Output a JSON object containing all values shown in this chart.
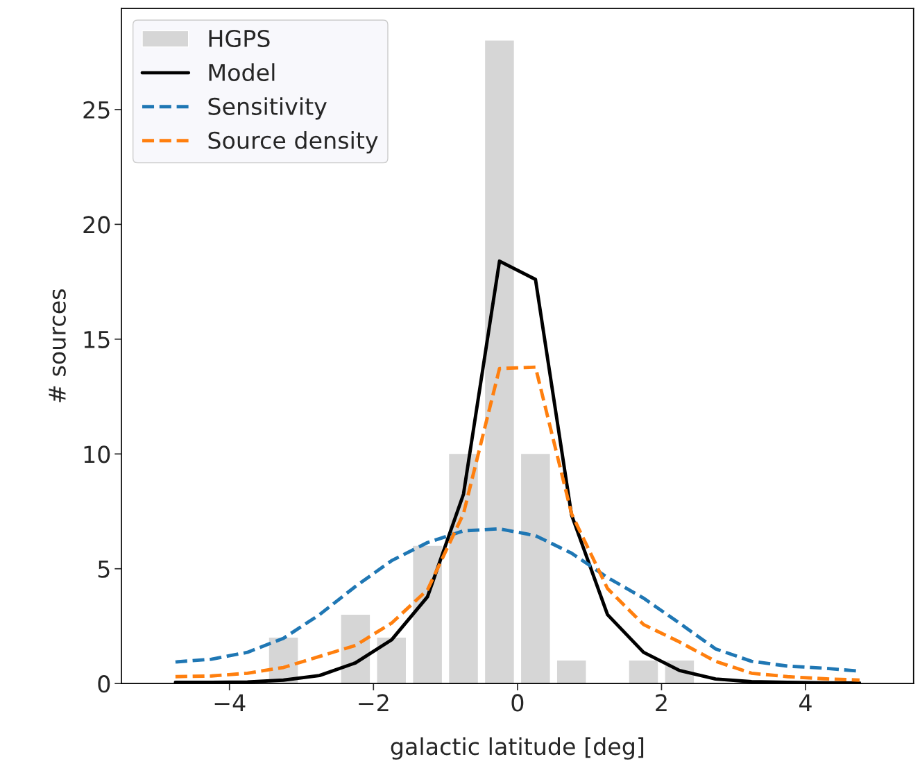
{
  "chart_data": {
    "type": "histogram",
    "xlabel": "galactic latitude [deg]",
    "ylabel": "# sources",
    "xlim": [
      -5.5,
      5.5
    ],
    "ylim": [
      0,
      29.4
    ],
    "xticks": [
      {
        "value": -4,
        "label": "−4"
      },
      {
        "value": -2,
        "label": "−2"
      },
      0,
      2,
      4
    ],
    "yticks": [
      0,
      5,
      10,
      15,
      20,
      25
    ],
    "grid": false,
    "legend": "top left",
    "series": [
      {
        "name": "HGPS",
        "color": "#d6d6d6",
        "bins": [
          -5,
          -4.5,
          -4,
          -3.5,
          -3,
          -2.5,
          -2,
          -1.5,
          -1,
          -0.5,
          0,
          0.5,
          1,
          1.5,
          2,
          2.5,
          3,
          3.5,
          4,
          4.5,
          5
        ],
        "values": [
          0,
          0,
          0,
          2,
          0,
          3,
          2,
          6,
          10,
          28,
          10,
          1,
          0,
          1,
          1,
          0,
          0,
          0,
          0,
          0
        ]
      },
      {
        "type": "line",
        "name": "Model",
        "color": "#000000",
        "line_style": "solid",
        "x": [
          -4.75,
          -4.25,
          -3.75,
          -3.25,
          -2.75,
          -2.25,
          -1.75,
          -1.25,
          -0.75,
          -0.25,
          0.25,
          0.75,
          1.25,
          1.75,
          2.25,
          2.75,
          3.25,
          3.75,
          4.25,
          4.75
        ],
        "values": [
          0.05,
          0.05,
          0.07,
          0.15,
          0.35,
          0.9,
          1.9,
          3.78,
          8.25,
          18.4,
          17.6,
          7.35,
          3.0,
          1.36,
          0.57,
          0.2,
          0.08,
          0.05,
          0.03,
          0.02
        ]
      },
      {
        "type": "line",
        "name": "Sensitivity",
        "color": "#1f77b4",
        "line_style": "dashed",
        "x": [
          -4.75,
          -4.25,
          -3.75,
          -3.25,
          -2.75,
          -2.25,
          -1.75,
          -1.25,
          -0.75,
          -0.25,
          0.25,
          0.75,
          1.25,
          1.75,
          2.25,
          2.75,
          3.25,
          3.75,
          4.25,
          4.75
        ],
        "values": [
          0.94,
          1.06,
          1.36,
          1.97,
          3.0,
          4.23,
          5.35,
          6.14,
          6.65,
          6.74,
          6.44,
          5.68,
          4.62,
          3.72,
          2.63,
          1.51,
          0.97,
          0.76,
          0.67,
          0.54
        ]
      },
      {
        "type": "line",
        "name": "Source density",
        "color": "#ff7f0e",
        "line_style": "dashed",
        "x": [
          -4.75,
          -4.25,
          -3.75,
          -3.25,
          -2.75,
          -2.25,
          -1.75,
          -1.25,
          -0.75,
          -0.25,
          0.25,
          0.75,
          1.25,
          1.75,
          2.25,
          2.75,
          3.25,
          3.75,
          4.25,
          4.75
        ],
        "values": [
          0.3,
          0.33,
          0.45,
          0.7,
          1.18,
          1.66,
          2.63,
          4.08,
          7.4,
          13.72,
          13.78,
          7.4,
          4.14,
          2.57,
          1.81,
          0.97,
          0.45,
          0.3,
          0.21,
          0.15
        ]
      }
    ]
  }
}
